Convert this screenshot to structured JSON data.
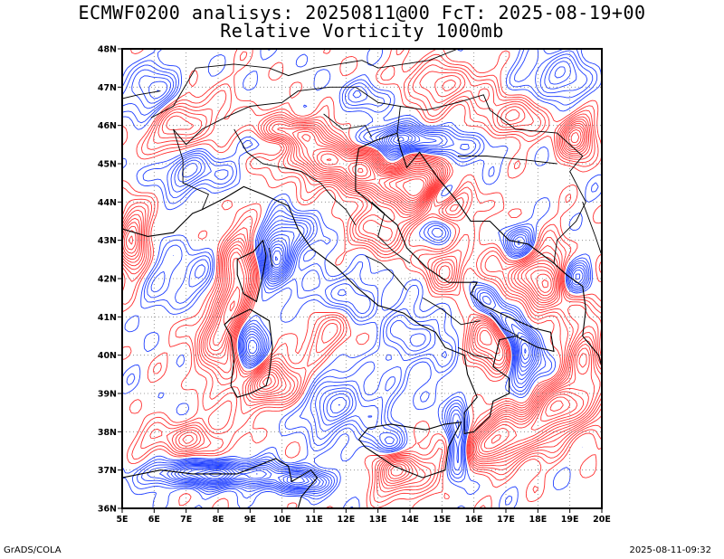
{
  "title": {
    "line1": "ECMWF0200 analisys: 20250811@00 FcT: 2025-08-19+00",
    "line2": "Relative Vorticity 1000mb"
  },
  "footer": {
    "left": "GrADS/COLA",
    "right": "2025-08-11-09:32"
  },
  "map": {
    "lon_range": [
      5,
      20
    ],
    "lat_range": [
      36,
      48
    ],
    "lon_ticks": [
      "5E",
      "6E",
      "7E",
      "8E",
      "9E",
      "10E",
      "11E",
      "12E",
      "13E",
      "14E",
      "15E",
      "16E",
      "17E",
      "18E",
      "19E",
      "20E"
    ],
    "lat_ticks": [
      "36N",
      "37N",
      "38N",
      "39N",
      "40N",
      "41N",
      "42N",
      "43N",
      "44N",
      "45N",
      "46N",
      "47N",
      "48N"
    ],
    "colors": {
      "positive_contours": "#ff3030",
      "negative_contours": "#2040ff",
      "coastline": "#000000",
      "grid": "#808080"
    }
  }
}
